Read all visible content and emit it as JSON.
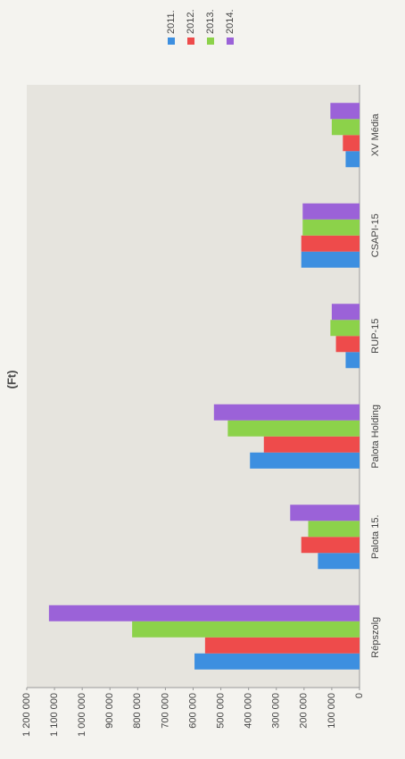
{
  "chart_data": {
    "type": "bar",
    "title": "(Ft)",
    "categories": [
      "Répszolg",
      "Palota 15.",
      "Palota Holding",
      "RUP-15",
      "CSAPI-15",
      "XV Média"
    ],
    "series": [
      {
        "name": "2011.",
        "color": "#3d8fe0",
        "values": [
          595000,
          150000,
          395000,
          50000,
          210000,
          50000
        ]
      },
      {
        "name": "2012.",
        "color": "#ee4b4b",
        "values": [
          557000,
          210000,
          345000,
          85000,
          210000,
          60000
        ]
      },
      {
        "name": "2013.",
        "color": "#8cd24a",
        "values": [
          820000,
          185000,
          475000,
          105000,
          205000,
          100000
        ]
      },
      {
        "name": "2014.",
        "color": "#9b62d8",
        "values": [
          1120000,
          250000,
          525000,
          100000,
          205000,
          105000
        ]
      }
    ],
    "ylim": [
      0,
      1200000
    ],
    "yticks": [
      0,
      {
        "value": 100000,
        "label": "100 000"
      },
      {
        "value": 200000,
        "label": "200 000"
      },
      {
        "value": 300000,
        "label": "300 000"
      },
      {
        "value": 400000,
        "label": "400 000"
      },
      {
        "value": 500000,
        "label": "500 000"
      },
      {
        "value": 600000,
        "label": "600 000"
      },
      {
        "value": 700000,
        "label": "700 000"
      },
      {
        "value": 800000,
        "label": "800 000"
      },
      {
        "value": 900000,
        "label": "900 000"
      },
      {
        "value": 1000000,
        "label": "1 000 000"
      },
      {
        "value": 1100000,
        "label": "1 100 000"
      },
      {
        "value": 1200000,
        "label": "1 200 000"
      }
    ],
    "grid": false
  }
}
